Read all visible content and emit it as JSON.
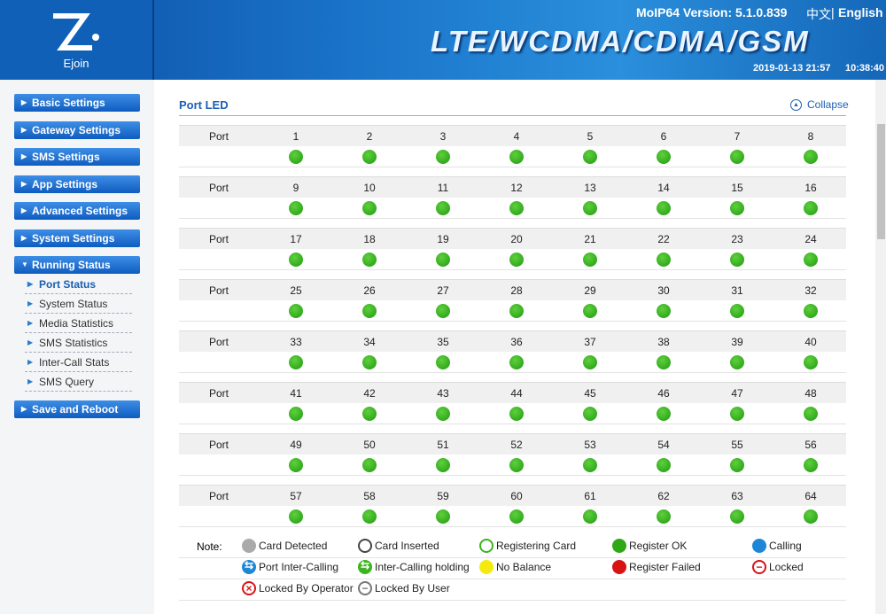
{
  "header": {
    "logo_text": "Ejoin",
    "version": "MoIP64 Version: 5.1.0.839",
    "lang_zh": "中文",
    "separator": "|",
    "lang_en": "English",
    "banner": "LTE/WCDMA/CDMA/GSM",
    "date": "2019-01-13 21:57",
    "time": "10:38:40"
  },
  "sidebar": {
    "menus": [
      {
        "label": "Basic Settings"
      },
      {
        "label": "Gateway Settings"
      },
      {
        "label": "SMS Settings"
      },
      {
        "label": "App Settings"
      },
      {
        "label": "Advanced Settings"
      },
      {
        "label": "System Settings"
      },
      {
        "label": "Running Status",
        "items": [
          "Port Status",
          "System Status",
          "Media Statistics",
          "SMS Statistics",
          "Inter-Call Stats",
          "SMS Query"
        ]
      },
      {
        "label": "Save and Reboot"
      }
    ]
  },
  "panel": {
    "title": "Port LED",
    "collapse": "Collapse",
    "port_label": "Port",
    "ports": [
      1,
      2,
      3,
      4,
      5,
      6,
      7,
      8,
      9,
      10,
      11,
      12,
      13,
      14,
      15,
      16,
      17,
      18,
      19,
      20,
      21,
      22,
      23,
      24,
      25,
      26,
      27,
      28,
      29,
      30,
      31,
      32,
      33,
      34,
      35,
      36,
      37,
      38,
      39,
      40,
      41,
      42,
      43,
      44,
      45,
      46,
      47,
      48,
      49,
      50,
      51,
      52,
      53,
      54,
      55,
      56,
      57,
      58,
      59,
      60,
      61,
      62,
      63,
      64
    ],
    "note_label": "Note:",
    "legend": [
      "Card Detected",
      "Card Inserted",
      "Registering Card",
      "Register OK",
      "Calling",
      "Port Inter-Calling",
      "Inter-Calling holding",
      "No Balance",
      "Register Failed",
      "Locked",
      "Locked By Operator",
      "Locked By User"
    ]
  }
}
